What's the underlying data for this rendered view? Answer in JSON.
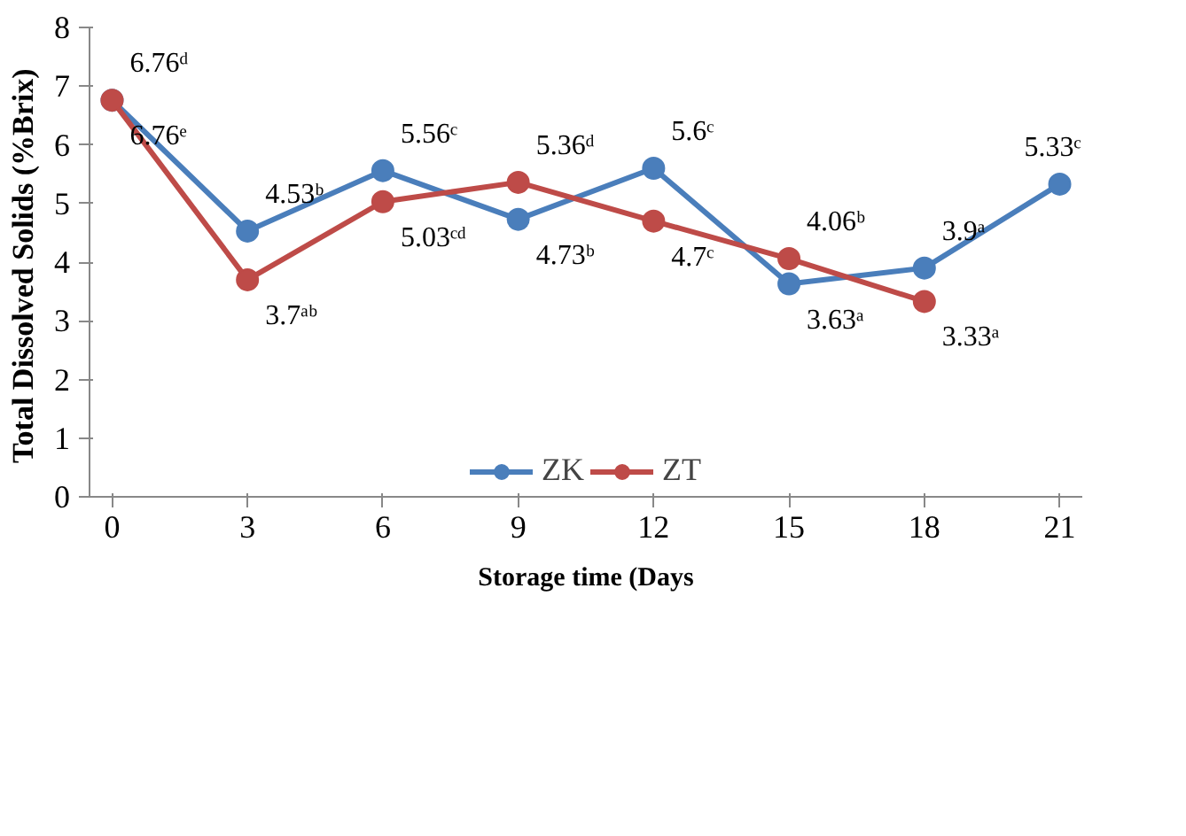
{
  "chart_data": {
    "type": "line",
    "xlabel": "Storage time (Days",
    "ylabel": "Total Dissolved Solids  (%Brix)",
    "x": [
      0,
      3,
      6,
      9,
      12,
      15,
      18,
      21
    ],
    "series": [
      {
        "name": "ZK",
        "color": "#4a7ebb",
        "values": [
          6.76,
          4.53,
          5.56,
          4.73,
          5.6,
          3.63,
          3.9,
          5.33
        ],
        "value_labels": [
          "6.76ᵈ",
          "4.53ᵇ",
          "5.56ᶜ",
          "4.73ᵇ",
          "5.6ᶜ",
          "3.63ᵃ",
          "3.9ᵃ",
          "5.33ᶜ"
        ]
      },
      {
        "name": "ZT",
        "color": "#be4b48",
        "values": [
          6.76,
          3.7,
          5.03,
          5.36,
          4.7,
          4.06,
          3.33,
          null
        ],
        "value_labels": [
          "6.76ᵉ",
          "3.7ᵃᵇ",
          "5.03ᶜᵈ",
          "5.36ᵈ",
          "4.7ᶜ",
          "4.06ᵇ",
          "3.33ᵃ",
          null
        ]
      }
    ],
    "xlim": [
      -0.5,
      21.5
    ],
    "ylim": [
      0,
      8
    ],
    "xticks": [
      0,
      3,
      6,
      9,
      12,
      15,
      18,
      21
    ],
    "yticks": [
      0,
      1,
      2,
      3,
      4,
      5,
      6,
      7,
      8
    ],
    "grid": false,
    "legend": "bottom",
    "marker": "circle",
    "line_style": "solid"
  }
}
